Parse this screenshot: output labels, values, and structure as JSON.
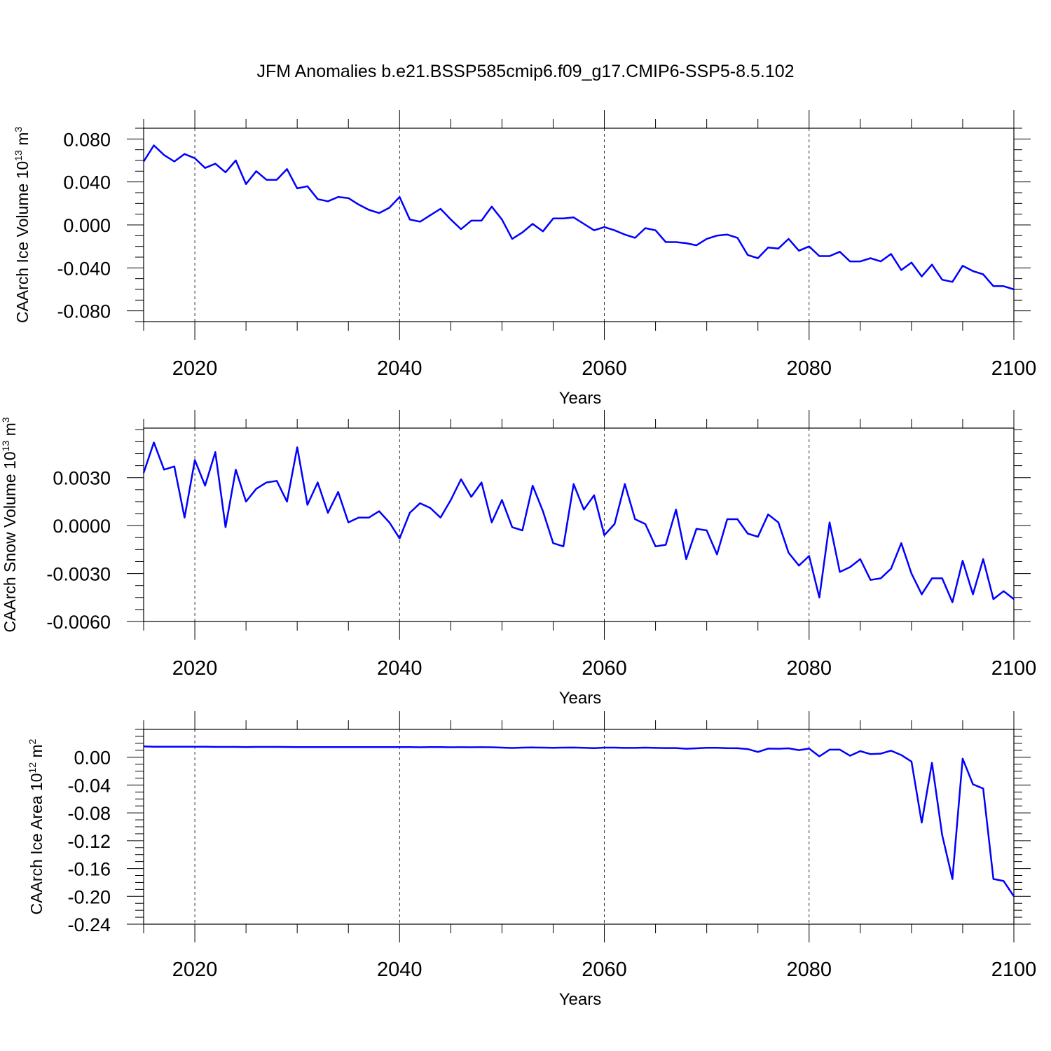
{
  "title": "JFM Anomalies b.e21.BSSP585cmip6.f09_g17.CMIP6-SSP5-8.5.102",
  "colors": {
    "line": "#0000ff",
    "axis": "#000000",
    "grid": "#000000"
  },
  "chart_data": [
    {
      "type": "line",
      "xlabel": "Years",
      "ylabel_main": "CAArch Ice Volume 10",
      "ylabel_exp": "13",
      "ylabel_unit": " m",
      "ylabel_unit_exp": "3",
      "xlim": [
        2015,
        2100
      ],
      "ylim": [
        -0.09,
        0.09
      ],
      "xticks": [
        2020,
        2040,
        2060,
        2080,
        2100
      ],
      "xtick_labels": [
        "2020",
        "2040",
        "2060",
        "2080",
        "2100"
      ],
      "yticks": [
        0.08,
        0.04,
        0.0,
        -0.04,
        -0.08
      ],
      "ytick_labels": [
        "0.080",
        "0.040",
        "0.000",
        "-0.040",
        "-0.080"
      ],
      "grid": "vertical dashed at major x ticks",
      "series": [
        {
          "x": [
            2015,
            2016,
            2017,
            2018,
            2019,
            2020,
            2021,
            2022,
            2023,
            2024,
            2025,
            2026,
            2027,
            2028,
            2029,
            2030,
            2031,
            2032,
            2033,
            2034,
            2035,
            2036,
            2037,
            2038,
            2039,
            2040,
            2041,
            2042,
            2043,
            2044,
            2045,
            2046,
            2047,
            2048,
            2049,
            2050,
            2051,
            2052,
            2053,
            2054,
            2055,
            2056,
            2057,
            2058,
            2059,
            2060,
            2061,
            2062,
            2063,
            2064,
            2065,
            2066,
            2067,
            2068,
            2069,
            2070,
            2071,
            2072,
            2073,
            2074,
            2075,
            2076,
            2077,
            2078,
            2079,
            2080,
            2081,
            2082,
            2083,
            2084,
            2085,
            2086,
            2087,
            2088,
            2089,
            2090,
            2091,
            2092,
            2093,
            2094,
            2095,
            2096,
            2097,
            2098,
            2099,
            2100
          ],
          "y": [
            0.059,
            0.074,
            0.065,
            0.059,
            0.066,
            0.062,
            0.053,
            0.057,
            0.049,
            0.06,
            0.038,
            0.05,
            0.042,
            0.042,
            0.052,
            0.034,
            0.036,
            0.024,
            0.022,
            0.026,
            0.025,
            0.019,
            0.014,
            0.011,
            0.016,
            0.026,
            0.005,
            0.003,
            0.009,
            0.015,
            0.005,
            -0.004,
            0.004,
            0.004,
            0.017,
            0.005,
            -0.013,
            -0.007,
            0.001,
            -0.006,
            0.006,
            0.006,
            0.007,
            0.001,
            -0.005,
            -0.002,
            -0.005,
            -0.009,
            -0.012,
            -0.003,
            -0.005,
            -0.016,
            -0.016,
            -0.017,
            -0.019,
            -0.013,
            -0.01,
            -0.009,
            -0.012,
            -0.028,
            -0.031,
            -0.021,
            -0.022,
            -0.013,
            -0.024,
            -0.02,
            -0.029,
            -0.029,
            -0.025,
            -0.034,
            -0.034,
            -0.031,
            -0.034,
            -0.027,
            -0.042,
            -0.035,
            -0.048,
            -0.037,
            -0.051,
            -0.053,
            -0.038,
            -0.043,
            -0.046,
            -0.057,
            -0.057,
            -0.06
          ]
        }
      ]
    },
    {
      "type": "line",
      "xlabel": "Years",
      "ylabel_main": "CAArch Snow Volume 10",
      "ylabel_exp": "13",
      "ylabel_unit": " m",
      "ylabel_unit_exp": "3",
      "xlim": [
        2015,
        2100
      ],
      "ylim": [
        -0.006,
        0.0061
      ],
      "xticks": [
        2020,
        2040,
        2060,
        2080,
        2100
      ],
      "xtick_labels": [
        "2020",
        "2040",
        "2060",
        "2080",
        "2100"
      ],
      "yticks": [
        0.003,
        0.0,
        -0.003,
        -0.006
      ],
      "ytick_labels": [
        "0.0030",
        "0.0000",
        "-0.0030",
        "-0.0060"
      ],
      "grid": "vertical dashed at major x ticks",
      "series": [
        {
          "x": [
            2015,
            2016,
            2017,
            2018,
            2019,
            2020,
            2021,
            2022,
            2023,
            2024,
            2025,
            2026,
            2027,
            2028,
            2029,
            2030,
            2031,
            2032,
            2033,
            2034,
            2035,
            2036,
            2037,
            2038,
            2039,
            2040,
            2041,
            2042,
            2043,
            2044,
            2045,
            2046,
            2047,
            2048,
            2049,
            2050,
            2051,
            2052,
            2053,
            2054,
            2055,
            2056,
            2057,
            2058,
            2059,
            2060,
            2061,
            2062,
            2063,
            2064,
            2065,
            2066,
            2067,
            2068,
            2069,
            2070,
            2071,
            2072,
            2073,
            2074,
            2075,
            2076,
            2077,
            2078,
            2079,
            2080,
            2081,
            2082,
            2083,
            2084,
            2085,
            2086,
            2087,
            2088,
            2089,
            2090,
            2091,
            2092,
            2093,
            2094,
            2095,
            2096,
            2097,
            2098,
            2099,
            2100
          ],
          "y": [
            0.0033,
            0.0052,
            0.0035,
            0.0037,
            0.0005,
            0.0041,
            0.0025,
            0.0046,
            -0.0001,
            0.0035,
            0.0015,
            0.0023,
            0.0027,
            0.0028,
            0.0015,
            0.0049,
            0.0013,
            0.0027,
            0.0008,
            0.0021,
            0.0002,
            0.0005,
            0.0005,
            0.0009,
            0.0002,
            -0.0008,
            0.0008,
            0.0014,
            0.0011,
            0.0005,
            0.0016,
            0.0029,
            0.0018,
            0.0027,
            0.0002,
            0.0016,
            -0.0001,
            -0.0003,
            0.0025,
            0.0009,
            -0.0011,
            -0.0013,
            0.0026,
            0.001,
            0.0019,
            -0.0006,
            0.0001,
            0.0026,
            0.0004,
            0.0001,
            -0.0013,
            -0.0012,
            0.001,
            -0.0021,
            -0.0002,
            -0.0003,
            -0.0018,
            0.0004,
            0.0004,
            -0.0005,
            -0.0007,
            0.0007,
            0.0002,
            -0.0017,
            -0.0025,
            -0.0019,
            -0.0045,
            0.0002,
            -0.0029,
            -0.0026,
            -0.0021,
            -0.0034,
            -0.0033,
            -0.0027,
            -0.0011,
            -0.003,
            -0.0043,
            -0.0033,
            -0.0033,
            -0.0048,
            -0.0022,
            -0.0043,
            -0.0021,
            -0.0046,
            -0.0041,
            -0.0046
          ]
        }
      ]
    },
    {
      "type": "line",
      "xlabel": "Years",
      "ylabel_main": "CAArch Ice Area 10",
      "ylabel_exp": "12",
      "ylabel_unit": " m",
      "ylabel_unit_exp": "2",
      "xlim": [
        2015,
        2100
      ],
      "ylim": [
        -0.24,
        0.04
      ],
      "xticks": [
        2020,
        2040,
        2060,
        2080,
        2100
      ],
      "xtick_labels": [
        "2020",
        "2040",
        "2060",
        "2080",
        "2100"
      ],
      "yticks": [
        0.0,
        -0.04,
        -0.08,
        -0.12,
        -0.16,
        -0.2,
        -0.24
      ],
      "ytick_labels": [
        "0.00",
        "-0.04",
        "-0.08",
        "-0.12",
        "-0.16",
        "-0.20",
        "-0.24"
      ],
      "grid": "vertical dashed at major x ticks",
      "series": [
        {
          "x": [
            2015,
            2016,
            2017,
            2018,
            2019,
            2020,
            2021,
            2022,
            2023,
            2024,
            2025,
            2026,
            2027,
            2028,
            2029,
            2030,
            2031,
            2032,
            2033,
            2034,
            2035,
            2036,
            2037,
            2038,
            2039,
            2040,
            2041,
            2042,
            2043,
            2044,
            2045,
            2046,
            2047,
            2048,
            2049,
            2050,
            2051,
            2052,
            2053,
            2054,
            2055,
            2056,
            2057,
            2058,
            2059,
            2060,
            2061,
            2062,
            2063,
            2064,
            2065,
            2066,
            2067,
            2068,
            2069,
            2070,
            2071,
            2072,
            2073,
            2074,
            2075,
            2076,
            2077,
            2078,
            2079,
            2080,
            2081,
            2082,
            2083,
            2084,
            2085,
            2086,
            2087,
            2088,
            2089,
            2090,
            2091,
            2092,
            2093,
            2094,
            2095,
            2096,
            2097,
            2098,
            2099,
            2100
          ],
          "y": [
            0.0155,
            0.015,
            0.015,
            0.015,
            0.015,
            0.015,
            0.015,
            0.0148,
            0.0148,
            0.0148,
            0.0145,
            0.0148,
            0.0148,
            0.0148,
            0.0147,
            0.0146,
            0.0146,
            0.0146,
            0.0145,
            0.0146,
            0.0145,
            0.0146,
            0.0146,
            0.0146,
            0.0146,
            0.0146,
            0.0145,
            0.0143,
            0.0145,
            0.0146,
            0.0143,
            0.0144,
            0.0143,
            0.0144,
            0.0143,
            0.0138,
            0.0133,
            0.0138,
            0.014,
            0.0138,
            0.0136,
            0.0138,
            0.0139,
            0.0136,
            0.0131,
            0.0138,
            0.0138,
            0.0134,
            0.0134,
            0.0138,
            0.0134,
            0.0132,
            0.0132,
            0.0122,
            0.0128,
            0.0135,
            0.0135,
            0.013,
            0.0129,
            0.0117,
            0.0076,
            0.0124,
            0.0122,
            0.0128,
            0.0102,
            0.0124,
            0.0012,
            0.0109,
            0.0109,
            0.0021,
            0.0088,
            0.0044,
            0.0052,
            0.0094,
            0.0031,
            -0.0062,
            -0.094,
            -0.008,
            -0.112,
            -0.175,
            -0.002,
            -0.039,
            -0.045,
            -0.175,
            -0.178,
            -0.2
          ]
        }
      ]
    }
  ]
}
